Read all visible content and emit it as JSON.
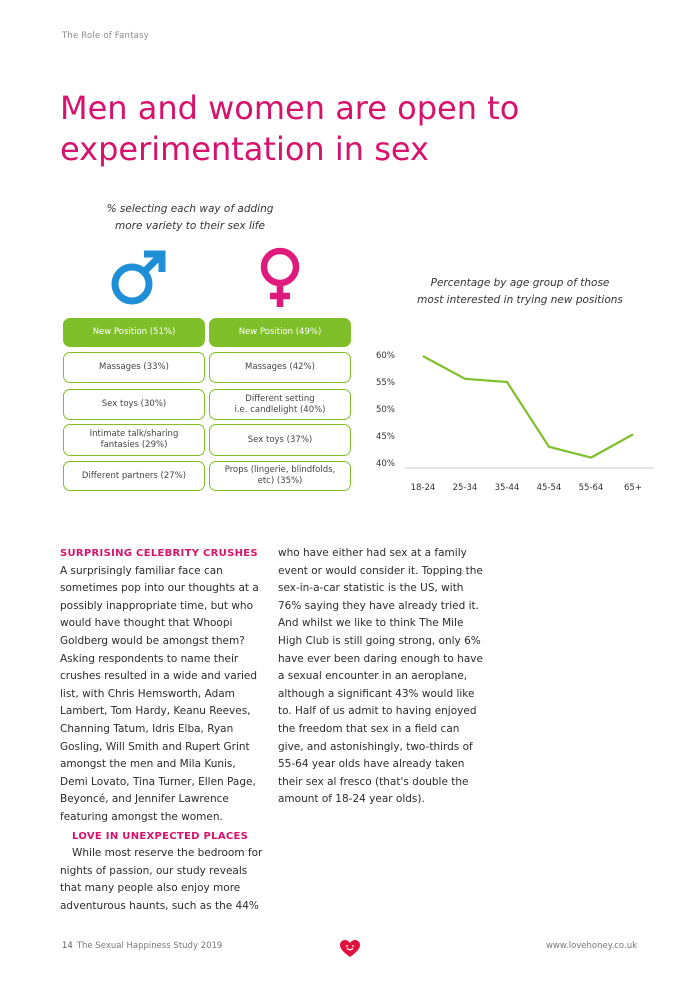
{
  "header": {
    "running_title": "The Role of Fantasy"
  },
  "headline": {
    "line1": "Men and women are open to",
    "line2": "experimentation in sex"
  },
  "infographic": {
    "caption_line1": "% selecting each way of adding",
    "caption_line2": "more variety to their sex life",
    "male_icon": "male-symbol-icon",
    "female_icon": "female-symbol-icon",
    "male_color": "#1e8fd6",
    "female_color": "#e0197d",
    "accent_color": "#7fbf2a",
    "men": [
      "New Position (51%)",
      "Massages (33%)",
      "Sex toys (30%)",
      [
        "Intimate talk/sharing",
        "fantasies (29%)"
      ],
      "Different partners (27%)"
    ],
    "women": [
      "New Position (49%)",
      "Massages (42%)",
      [
        "Different setting",
        "i.e. candlelight (40%)"
      ],
      "Sex toys (37%)",
      [
        "Props (lingerie, blindfolds,",
        "etc) (35%)"
      ]
    ]
  },
  "chart_data": {
    "type": "line",
    "caption_line1": "Percentage by age group of those",
    "caption_line2": "most interested in trying new positions",
    "categories": [
      "18-24",
      "25-34",
      "35-44",
      "45-54",
      "55-64",
      "65+"
    ],
    "values": [
      59.8,
      55.6,
      55.0,
      43.0,
      41.0,
      45.3
    ],
    "yticks": [
      "60%",
      "55%",
      "50%",
      "45%",
      "40%"
    ],
    "ylim": [
      40,
      60
    ],
    "line_color": "#7fbf2a"
  },
  "article": {
    "section1_heading": "SURPRISING CELEBRITY CRUSHES",
    "section1_text": "A surprisingly familiar face can sometimes pop into our thoughts at a possibly inappropriate time, but who would have thought that Whoopi Goldberg would be amongst them? Asking respondents to name their crushes resulted in a wide and varied list, with Chris Hemsworth, Adam Lambert, Tom Hardy, Keanu Reeves, Channing Tatum, Idris Elba, Ryan Gosling, Will Smith and Rupert Grint amongst the men and Mila Kunis, Demi Lovato, Tina Turner, Ellen Page, Beyoncé, and Jennifer Lawrence featuring amongst the women.",
    "section2_heading": "LOVE IN UNEXPECTED PLACES",
    "section2_text_col1": "While most reserve the bedroom for nights of passion, our study reveals that many people also enjoy more adventurous haunts, such as the 44%",
    "section2_text_col2": "who have either had sex at a family event or would consider it. Topping the sex-in-a-car statistic is the US, with 76% saying they have already tried it. And whilst we like to think The Mile High Club is still going strong, only 6% have ever been daring enough to have a sexual encounter in an aeroplane, although a significant 43% would like to. Half of us admit to having enjoyed the freedom that sex in a field can give, and astonishingly, two-thirds of 55-64 year olds have already taken their sex al fresco (that's double the amount of 18-24 year olds)."
  },
  "footer": {
    "page_number": "14",
    "publication": "The Sexual Happiness Study 2019",
    "logo_icon": "lovehoney-heart-logo-icon",
    "url": "www.lovehoney.co.uk"
  }
}
